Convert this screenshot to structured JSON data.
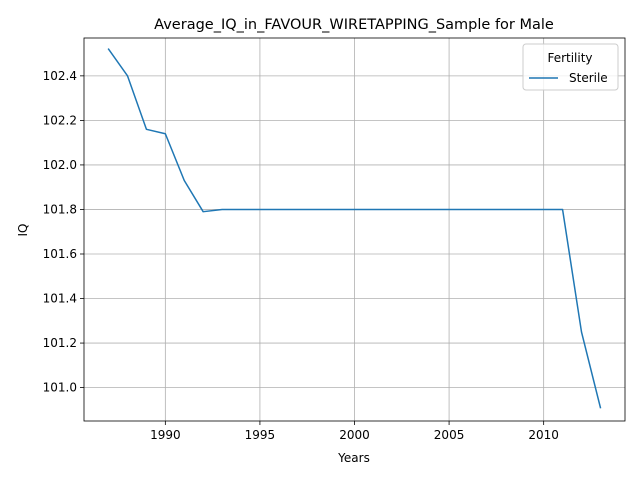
{
  "chart_data": {
    "type": "line",
    "title": "Average_IQ_in_FAVOUR_WIRETAPPING_Sample for Male",
    "xlabel": "Years",
    "ylabel": "IQ",
    "xlim": [
      1985.7,
      2014.3
    ],
    "ylim": [
      100.85,
      102.57
    ],
    "xticks": [
      1990,
      1995,
      2000,
      2005,
      2010
    ],
    "yticks": [
      101.0,
      101.2,
      101.4,
      101.6,
      101.8,
      102.0,
      102.2,
      102.4
    ],
    "grid": true,
    "legend": {
      "title": "Fertility",
      "placement": "top-right"
    },
    "series": [
      {
        "name": "Sterile",
        "color": "#1f77b4",
        "x": [
          1987,
          1988,
          1989,
          1990,
          1991,
          1992,
          1993,
          1994,
          1995,
          1996,
          1997,
          1998,
          1999,
          2000,
          2001,
          2002,
          2003,
          2004,
          2005,
          2006,
          2007,
          2008,
          2009,
          2010,
          2011,
          2012,
          2013
        ],
        "y": [
          102.52,
          102.4,
          102.16,
          102.14,
          101.93,
          101.79,
          101.8,
          101.8,
          101.8,
          101.8,
          101.8,
          101.8,
          101.8,
          101.8,
          101.8,
          101.8,
          101.8,
          101.8,
          101.8,
          101.8,
          101.8,
          101.8,
          101.8,
          101.8,
          101.8,
          101.25,
          100.91
        ]
      }
    ]
  }
}
